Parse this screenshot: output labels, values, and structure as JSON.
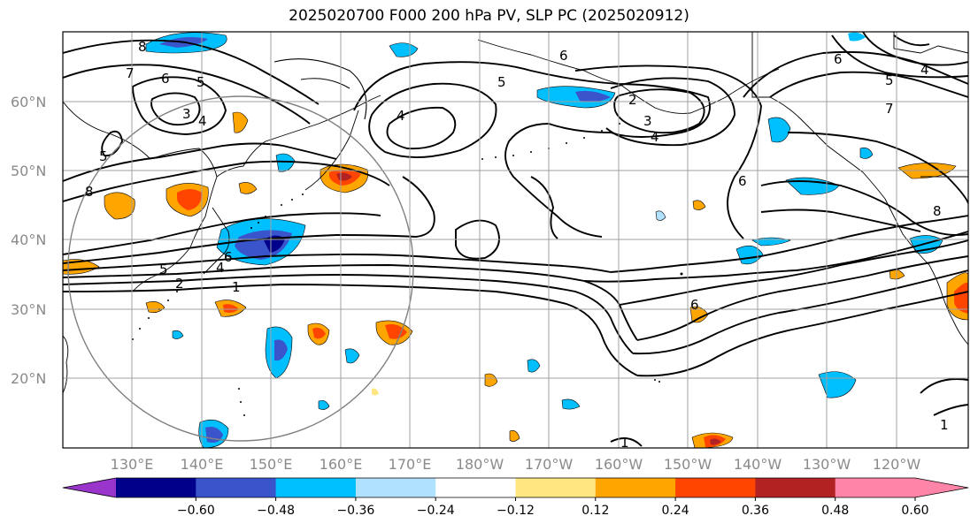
{
  "title": "2025020700 F000 200 hPa PV, SLP PC (2025020912)",
  "lat_labels": [
    "60°N",
    "50°N",
    "40°N",
    "30°N",
    "20°N"
  ],
  "lon_labels": [
    "130°E",
    "140°E",
    "150°E",
    "160°E",
    "170°E",
    "180°W",
    "170°W",
    "160°W",
    "150°W",
    "140°W",
    "130°W",
    "120°W"
  ],
  "colorbar": {
    "tick_labels": [
      "−0.60",
      "−0.48",
      "−0.36",
      "−0.24",
      "−0.12",
      "0.12",
      "0.24",
      "0.36",
      "0.48",
      "0.60"
    ],
    "colors": [
      "#9a35cc",
      "#00008b",
      "#3a55cc",
      "#00bfff",
      "#b0e2ff",
      "#ffffff",
      "#ffe680",
      "#ffa500",
      "#ff4500",
      "#b22222",
      "#ff85a8",
      "#ffffff"
    ]
  },
  "contour_labels": [
    "8",
    "7",
    "6",
    "5",
    "3",
    "4",
    "5",
    "8",
    "5",
    "4",
    "2",
    "1",
    "6",
    "4",
    "5",
    "6",
    "2",
    "3",
    "4",
    "6",
    "6",
    "1",
    "6",
    "5",
    "4",
    "7",
    "8",
    "1"
  ]
}
